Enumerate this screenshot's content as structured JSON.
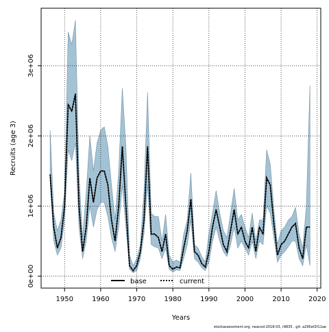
{
  "chart_data": {
    "type": "area",
    "title": "",
    "xlabel": "Years",
    "ylabel": "Recruits (age 3)",
    "xlim": [
      1943.5,
      2021
    ],
    "ylim": [
      -170000,
      3820000
    ],
    "x_ticks": [
      1950,
      1960,
      1970,
      1980,
      1990,
      2000,
      2010,
      2020
    ],
    "x_tick_labels": [
      "1950",
      "1960",
      "1970",
      "1980",
      "1990",
      "2000",
      "2010",
      "2020"
    ],
    "y_ticks": [
      0,
      1000000,
      2000000,
      3000000
    ],
    "y_tick_labels": [
      "0e+00",
      "1e+06",
      "2e+06",
      "3e+06"
    ],
    "grid": true,
    "legend_position": "bottom-center",
    "legend": [
      {
        "label": "base",
        "style": "solid"
      },
      {
        "label": "current",
        "style": "dotted"
      }
    ],
    "colors": {
      "band": "#a3c3d5",
      "band_edge": "#6f8fa3",
      "line": "#000000",
      "grid": "#000000"
    },
    "x": [
      1946,
      1947,
      1948,
      1949,
      1950,
      1951,
      1952,
      1953,
      1954,
      1955,
      1956,
      1957,
      1958,
      1959,
      1960,
      1961,
      1962,
      1963,
      1964,
      1965,
      1966,
      1967,
      1968,
      1969,
      1970,
      1971,
      1972,
      1973,
      1974,
      1975,
      1976,
      1977,
      1978,
      1979,
      1980,
      1981,
      1982,
      1983,
      1984,
      1985,
      1986,
      1987,
      1988,
      1989,
      1990,
      1991,
      1992,
      1993,
      1994,
      1995,
      1996,
      1997,
      1998,
      1999,
      2000,
      2001,
      2002,
      2003,
      2004,
      2005,
      2006,
      2007,
      2008,
      2009,
      2010,
      2011,
      2012,
      2013,
      2014,
      2015,
      2016,
      2017,
      2018
    ],
    "series": [
      {
        "name": "base",
        "values": [
          1450000,
          700000,
          400000,
          550000,
          1000000,
          2450000,
          2350000,
          2600000,
          1000000,
          350000,
          700000,
          1400000,
          1050000,
          1400000,
          1500000,
          1500000,
          1300000,
          800000,
          500000,
          1000000,
          1850000,
          1000000,
          150000,
          80000,
          150000,
          350000,
          800000,
          1850000,
          600000,
          600000,
          550000,
          350000,
          600000,
          150000,
          100000,
          130000,
          120000,
          400000,
          650000,
          1100000,
          350000,
          300000,
          180000,
          130000,
          350000,
          700000,
          950000,
          700000,
          450000,
          350000,
          650000,
          950000,
          600000,
          700000,
          500000,
          400000,
          700000,
          350000,
          700000,
          600000,
          1400000,
          1300000,
          750000,
          300000,
          450000,
          500000,
          600000,
          700000,
          750000,
          400000,
          250000,
          700000,
          700000
        ]
      },
      {
        "name": "current",
        "values": [
          1450000,
          700000,
          400000,
          550000,
          1000000,
          2450000,
          2350000,
          2600000,
          1000000,
          350000,
          700000,
          1400000,
          1050000,
          1400000,
          1500000,
          1500000,
          1300000,
          800000,
          500000,
          1000000,
          1850000,
          1000000,
          150000,
          80000,
          150000,
          350000,
          800000,
          1850000,
          600000,
          600000,
          550000,
          350000,
          600000,
          150000,
          100000,
          130000,
          120000,
          400000,
          650000,
          1100000,
          350000,
          300000,
          180000,
          130000,
          350000,
          700000,
          950000,
          700000,
          450000,
          350000,
          650000,
          950000,
          600000,
          700000,
          500000,
          400000,
          700000,
          350000,
          700000,
          600000,
          1400000,
          1300000,
          750000,
          300000,
          450000,
          500000,
          600000,
          700000,
          750000,
          400000,
          250000,
          700000,
          700000
        ]
      }
    ],
    "band_upper": [
      2080000,
      900000,
      650000,
      800000,
      1200000,
      3480000,
      3300000,
      3650000,
      1450000,
      550000,
      1200000,
      2000000,
      1500000,
      1900000,
      2080000,
      2130000,
      1850000,
      1300000,
      800000,
      1500000,
      2680000,
      1850000,
      300000,
      150000,
      250000,
      450000,
      1200000,
      2620000,
      900000,
      850000,
      850000,
      500000,
      880000,
      300000,
      200000,
      230000,
      200000,
      600000,
      800000,
      1470000,
      450000,
      400000,
      280000,
      200000,
      600000,
      900000,
      1220000,
      900000,
      650000,
      550000,
      900000,
      1250000,
      800000,
      880000,
      700000,
      550000,
      900000,
      500000,
      800000,
      800000,
      1800000,
      1600000,
      950000,
      450000,
      650000,
      700000,
      800000,
      850000,
      980000,
      600000,
      400000,
      1000000,
      2720000
    ],
    "band_lower": [
      1350000,
      500000,
      300000,
      400000,
      800000,
      1800000,
      1650000,
      1900000,
      700000,
      250000,
      500000,
      1000000,
      700000,
      950000,
      1050000,
      1050000,
      850000,
      550000,
      350000,
      700000,
      1300000,
      700000,
      100000,
      50000,
      80000,
      250000,
      600000,
      1300000,
      450000,
      420000,
      400000,
      250000,
      400000,
      100000,
      60000,
      90000,
      80000,
      250000,
      450000,
      800000,
      250000,
      200000,
      120000,
      80000,
      200000,
      500000,
      700000,
      500000,
      350000,
      280000,
      450000,
      700000,
      400000,
      500000,
      400000,
      300000,
      500000,
      250000,
      500000,
      450000,
      1000000,
      900000,
      550000,
      200000,
      300000,
      350000,
      420000,
      500000,
      500000,
      250000,
      150000,
      450000,
      150000
    ]
  },
  "footer": "stockassessment.org, neacod-2018-03, r9835 , git: a295ef2f11ae"
}
